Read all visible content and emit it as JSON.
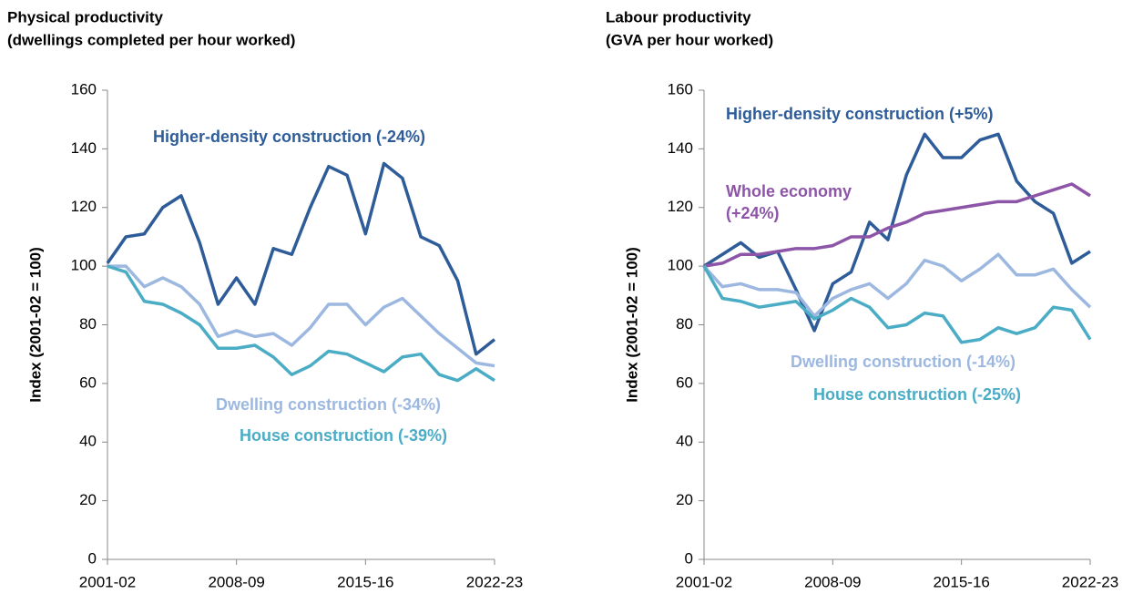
{
  "chart_data": [
    {
      "type": "line",
      "title": [
        "Physical productivity",
        "(dwellings completed per hour worked)"
      ],
      "y_label": "Index (2001-02 = 100)",
      "categories": [
        "2001-02",
        null,
        null,
        null,
        null,
        null,
        null,
        "2008-09",
        null,
        null,
        null,
        null,
        null,
        null,
        "2015-16",
        null,
        null,
        null,
        null,
        null,
        null,
        "2022-23"
      ],
      "ylim": [
        0,
        160
      ],
      "yticks": [
        0,
        20,
        40,
        60,
        80,
        100,
        120,
        140,
        160
      ],
      "series": [
        {
          "name": "Higher-density construction (-24%)",
          "color": "#2e5c99",
          "values": [
            101,
            110,
            111,
            120,
            124,
            108,
            87,
            96,
            87,
            106,
            104,
            120,
            134,
            131,
            111,
            135,
            130,
            110,
            107,
            95,
            70,
            75
          ]
        },
        {
          "name": "Dwelling construction (-34%)",
          "color": "#9db8e0",
          "values": [
            100,
            100,
            93,
            96,
            93,
            87,
            76,
            78,
            76,
            77,
            73,
            79,
            87,
            87,
            80,
            86,
            89,
            83,
            77,
            72,
            67,
            66
          ]
        },
        {
          "name": "House construction (-39%)",
          "color": "#4bacc6",
          "values": [
            100,
            98,
            88,
            87,
            84,
            80,
            72,
            72,
            73,
            69,
            63,
            66,
            71,
            70,
            67,
            64,
            69,
            70,
            63,
            61,
            65,
            61
          ]
        }
      ]
    },
    {
      "type": "line",
      "title": [
        "Labour productivity",
        "(GVA per hour worked)"
      ],
      "y_label": "Index (2001-02 = 100)",
      "categories": [
        "2001-02",
        null,
        null,
        null,
        null,
        null,
        null,
        "2008-09",
        null,
        null,
        null,
        null,
        null,
        null,
        "2015-16",
        null,
        null,
        null,
        null,
        null,
        null,
        "2022-23"
      ],
      "ylim": [
        0,
        160
      ],
      "yticks": [
        0,
        20,
        40,
        60,
        80,
        100,
        120,
        140,
        160
      ],
      "series": [
        {
          "name": "Higher-density construction (+5%)",
          "color": "#2e5c99",
          "values": [
            100,
            104,
            108,
            103,
            105,
            92,
            78,
            94,
            98,
            115,
            109,
            131,
            145,
            137,
            137,
            143,
            145,
            129,
            122,
            118,
            101,
            105
          ]
        },
        {
          "name": "Whole economy (+24%)",
          "color": "#8d55a8",
          "values": [
            100,
            101,
            104,
            104,
            105,
            106,
            106,
            107,
            110,
            110,
            113,
            115,
            118,
            119,
            120,
            121,
            122,
            122,
            124,
            126,
            128,
            124
          ]
        },
        {
          "name": "Dwelling construction (-14%)",
          "color": "#9db8e0",
          "values": [
            100,
            93,
            94,
            92,
            92,
            91,
            83,
            89,
            92,
            94,
            89,
            94,
            102,
            100,
            95,
            99,
            104,
            97,
            97,
            99,
            92,
            86
          ]
        },
        {
          "name": "House construction (-25%)",
          "color": "#4bacc6",
          "values": [
            100,
            89,
            88,
            86,
            87,
            88,
            82,
            85,
            89,
            86,
            79,
            80,
            84,
            83,
            74,
            75,
            79,
            77,
            79,
            86,
            85,
            75
          ]
        }
      ]
    }
  ]
}
